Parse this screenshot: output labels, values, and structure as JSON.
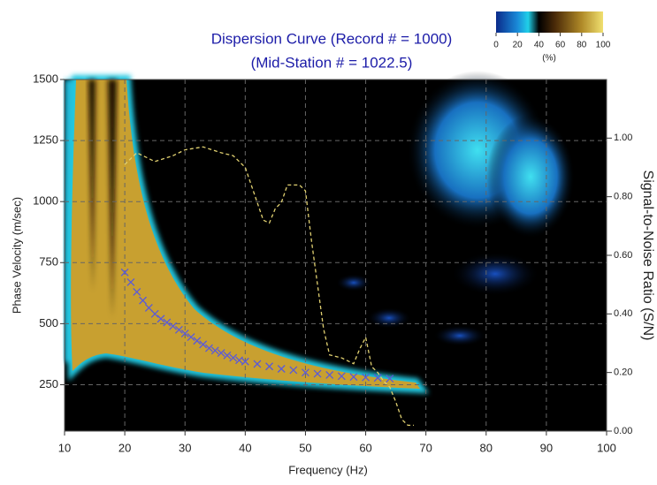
{
  "chart_data": {
    "type": "dispersion",
    "title": "Dispersion Curve (Record # = 1000)",
    "subtitle": "(Mid-Station # = 1022.5)",
    "x_label": "Frequency (Hz)",
    "y_label": "Phase Velocity (m/sec)",
    "y2_label": "Signal-to-Noise Ratio (S/N)",
    "xlim": [
      10,
      100
    ],
    "xticks": [
      10,
      20,
      30,
      40,
      50,
      60,
      70,
      80,
      90,
      100
    ],
    "ylim": [
      60,
      1500
    ],
    "yticks": [
      250,
      500,
      750,
      1000,
      1250,
      1500
    ],
    "y2lim": [
      0,
      1.2
    ],
    "y2ticks": [
      {
        "value": 0,
        "label": "0.00"
      },
      {
        "value": 0.2,
        "label": "0.20"
      },
      {
        "value": 0.4,
        "label": "0.40"
      },
      {
        "value": 0.6,
        "label": "0.60"
      },
      {
        "value": 0.8,
        "label": "0.80"
      },
      {
        "value": 1,
        "label": "1.00"
      }
    ],
    "grid": true,
    "colorbar": {
      "ticks": [
        0,
        20,
        40,
        60,
        80,
        100
      ],
      "label": "(%)"
    },
    "series": [
      {
        "color": "#5a5ad8",
        "x": [
          20,
          21,
          22,
          23,
          24,
          25,
          26,
          27,
          28,
          29,
          30,
          31,
          32,
          33,
          34,
          35,
          36,
          37,
          38,
          39,
          40,
          42,
          44,
          46,
          48,
          50,
          52,
          54,
          56,
          58,
          60,
          62,
          64
        ],
        "values": [
          710,
          670,
          630,
          595,
          565,
          540,
          520,
          505,
          490,
          475,
          460,
          445,
          430,
          415,
          400,
          390,
          380,
          370,
          360,
          350,
          345,
          335,
          325,
          315,
          310,
          300,
          295,
          290,
          285,
          282,
          280,
          278,
          275
        ]
      },
      {
        "color": "#e0d070",
        "axis": "y2",
        "x": [
          20,
          22,
          25,
          28,
          30,
          33,
          36,
          38,
          40,
          41,
          42,
          43,
          44,
          45,
          46,
          47,
          49,
          50,
          51,
          52,
          53,
          54,
          56,
          58,
          59,
          60,
          61,
          62,
          63,
          64,
          65,
          66,
          67,
          68
        ],
        "values": [
          0.91,
          0.95,
          0.92,
          0.94,
          0.96,
          0.97,
          0.95,
          0.94,
          0.9,
          0.84,
          0.78,
          0.72,
          0.71,
          0.76,
          0.78,
          0.84,
          0.84,
          0.82,
          0.65,
          0.5,
          0.35,
          0.26,
          0.25,
          0.23,
          0.28,
          0.32,
          0.22,
          0.2,
          0.17,
          0.15,
          0.1,
          0.04,
          0.02,
          0.02
        ]
      }
    ]
  }
}
